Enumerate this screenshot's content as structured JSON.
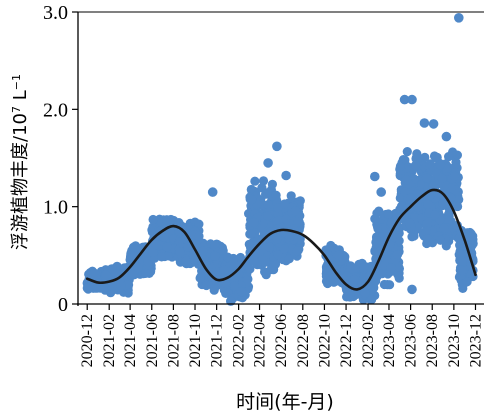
{
  "chart_data": {
    "type": "scatter",
    "xlabel": "时间(年-月)",
    "ylabel": "浮游植物丰度/10",
    "ylabel_exp": "7",
    "ylabel_unit": " L",
    "ylabel_unit_exp": "−1",
    "ylim": [
      0,
      3.0
    ],
    "yticks": [
      "0",
      "1.0",
      "2.0",
      "3.0"
    ],
    "xlim": [
      "2020-11-05",
      "2023-12-25"
    ],
    "xticks": [
      "2020-12",
      "2021-02",
      "2021-04",
      "2021-06",
      "2021-08",
      "2021-10",
      "2021-12",
      "2022-02",
      "2022-04",
      "2022-06",
      "2022-08",
      "2022-10",
      "2022-12",
      "2023-02",
      "2023-04",
      "2023-06",
      "2023-08",
      "2023-10",
      "2023-12"
    ],
    "grid": false,
    "colors": {
      "points": "#4F88C8",
      "curve": "#1a1a1a",
      "axis": "#000000"
    },
    "series": [
      {
        "kind": "points",
        "clusters": [
          {
            "start": "2020-12-01",
            "end": "2021-01-20",
            "lo": 0.15,
            "hi": 0.35
          },
          {
            "start": "2021-01-20",
            "end": "2021-04-01",
            "lo": 0.12,
            "hi": 0.38
          },
          {
            "start": "2021-04-01",
            "end": "2021-06-01",
            "lo": 0.3,
            "hi": 0.6
          },
          {
            "start": "2021-06-01",
            "end": "2021-08-15",
            "lo": 0.48,
            "hi": 0.88
          },
          {
            "start": "2021-08-15",
            "end": "2021-10-15",
            "lo": 0.4,
            "hi": 0.85
          },
          {
            "start": "2021-10-15",
            "end": "2021-12-20",
            "lo": 0.15,
            "hi": 0.62
          },
          {
            "start": "2021-12-20",
            "end": "2022-03-01",
            "lo": 0.05,
            "hi": 0.5
          },
          {
            "start": "2022-03-01",
            "end": "2022-05-20",
            "lo": 0.3,
            "hi": 1.25
          },
          {
            "start": "2022-05-20",
            "end": "2022-07-25",
            "lo": 0.45,
            "hi": 1.1
          },
          {
            "start": "2022-10-05",
            "end": "2022-12-01",
            "lo": 0.2,
            "hi": 0.6
          },
          {
            "start": "2022-12-01",
            "end": "2023-02-20",
            "lo": 0.05,
            "hi": 0.42
          },
          {
            "start": "2023-02-20",
            "end": "2023-05-01",
            "lo": 0.2,
            "hi": 0.95
          },
          {
            "start": "2023-05-01",
            "end": "2023-07-15",
            "lo": 0.7,
            "hi": 1.55
          },
          {
            "start": "2023-07-15",
            "end": "2023-10-15",
            "lo": 0.6,
            "hi": 1.55
          },
          {
            "start": "2023-10-15",
            "end": "2023-11-25",
            "lo": 0.15,
            "hi": 0.8
          }
        ],
        "outliers": [
          {
            "x": "2021-11-20",
            "y": 1.15
          },
          {
            "x": "2022-05-20",
            "y": 1.62
          },
          {
            "x": "2022-04-25",
            "y": 1.45
          },
          {
            "x": "2022-06-15",
            "y": 1.32
          },
          {
            "x": "2023-02-20",
            "y": 1.31
          },
          {
            "x": "2023-03-10",
            "y": 1.15
          },
          {
            "x": "2023-05-15",
            "y": 2.1
          },
          {
            "x": "2023-06-05",
            "y": 2.1
          },
          {
            "x": "2023-07-10",
            "y": 1.86
          },
          {
            "x": "2023-08-05",
            "y": 1.85
          },
          {
            "x": "2023-09-10",
            "y": 1.72
          },
          {
            "x": "2023-10-15",
            "y": 2.94
          },
          {
            "x": "2023-06-05",
            "y": 0.15
          },
          {
            "x": "2022-01-10",
            "y": 0.03
          }
        ]
      },
      {
        "kind": "curve",
        "x": [
          "2020-12-01",
          "2021-01-01",
          "2021-02-01",
          "2021-03-01",
          "2021-04-01",
          "2021-05-01",
          "2021-06-01",
          "2021-07-01",
          "2021-08-01",
          "2021-09-01",
          "2021-10-01",
          "2021-11-01",
          "2021-12-01",
          "2022-01-01",
          "2022-02-01",
          "2022-03-01",
          "2022-04-01",
          "2022-05-01",
          "2022-06-01",
          "2022-07-01",
          "2022-08-01",
          "2022-09-01",
          "2022-10-01",
          "2022-11-01",
          "2022-12-01",
          "2023-01-01",
          "2023-02-01",
          "2023-03-01",
          "2023-04-01",
          "2023-05-01",
          "2023-06-01",
          "2023-07-01",
          "2023-08-01",
          "2023-09-01",
          "2023-10-01",
          "2023-11-01",
          "2023-12-01"
        ],
        "y": [
          0.26,
          0.22,
          0.23,
          0.27,
          0.38,
          0.52,
          0.66,
          0.75,
          0.8,
          0.74,
          0.56,
          0.36,
          0.25,
          0.27,
          0.36,
          0.49,
          0.62,
          0.72,
          0.76,
          0.75,
          0.71,
          0.62,
          0.5,
          0.33,
          0.2,
          0.15,
          0.23,
          0.43,
          0.69,
          0.88,
          1.0,
          1.1,
          1.17,
          1.13,
          0.95,
          0.65,
          0.3
        ]
      }
    ]
  }
}
